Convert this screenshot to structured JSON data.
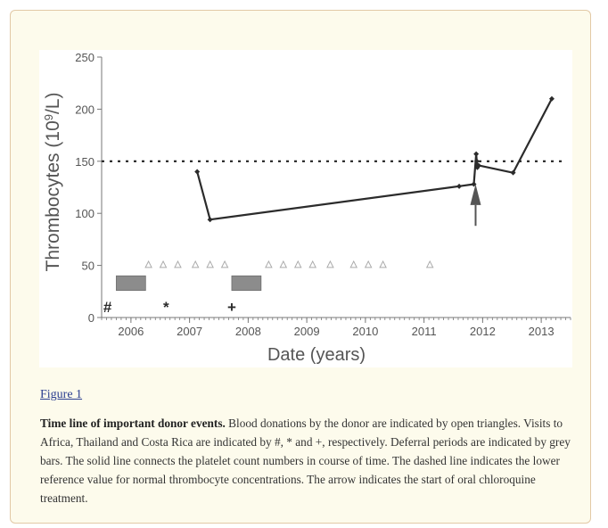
{
  "figure": {
    "link_label": "Figure 1",
    "caption_title": "Time line of important donor events.",
    "caption_body": "Blood donations by the donor are indicated by open triangles. Visits to Africa, Thailand and Costa Rica are indicated by #, * and +, respectively. Deferral periods are indicated by grey bars. The solid line connects the platelet count numbers in course of time. The dashed line indicates the lower reference value for normal thrombocyte concentrations. The arrow indicates the start of oral chloroquine treatment."
  },
  "chart_data": {
    "type": "line",
    "ylabel_main": "Thrombocytes (10",
    "ylabel_sup": "9",
    "ylabel_tail": "/L)",
    "xlabel": "Date (years)",
    "ylim": [
      0,
      250
    ],
    "yticks": [
      0,
      50,
      100,
      150,
      200,
      250
    ],
    "xlim": [
      2005.5,
      2013.5
    ],
    "xticks": [
      2006,
      2007,
      2008,
      2009,
      2010,
      2011,
      2012,
      2013
    ],
    "reference_line": 150,
    "series": [
      {
        "points": [
          [
            2007.13,
            140
          ],
          [
            2007.35,
            94
          ],
          [
            2011.6,
            126
          ],
          [
            2011.85,
            128
          ],
          [
            2011.89,
            157
          ],
          [
            2011.9,
            150
          ],
          [
            2011.91,
            144
          ],
          [
            2011.93,
            146
          ],
          [
            2012.52,
            139
          ],
          [
            2013.18,
            210
          ]
        ]
      }
    ],
    "donations": [
      2006.3,
      2006.55,
      2006.8,
      2007.1,
      2007.35,
      2007.6,
      2008.35,
      2008.6,
      2008.85,
      2009.1,
      2009.4,
      2009.8,
      2010.05,
      2010.3,
      2011.1
    ],
    "deferrals": [
      [
        2005.75,
        2006.25
      ],
      [
        2007.72,
        2008.22
      ]
    ],
    "visits": [
      {
        "symbol": "#",
        "x": 2005.6
      },
      {
        "symbol": "*",
        "x": 2006.6
      },
      {
        "symbol": "+",
        "x": 2007.72
      }
    ],
    "treatment_start": 2011.88,
    "colors": {
      "line": "#2b2b2b",
      "bars": "#8c8c8c",
      "triangles": "#aaaaaa",
      "dash": "#222222"
    }
  }
}
